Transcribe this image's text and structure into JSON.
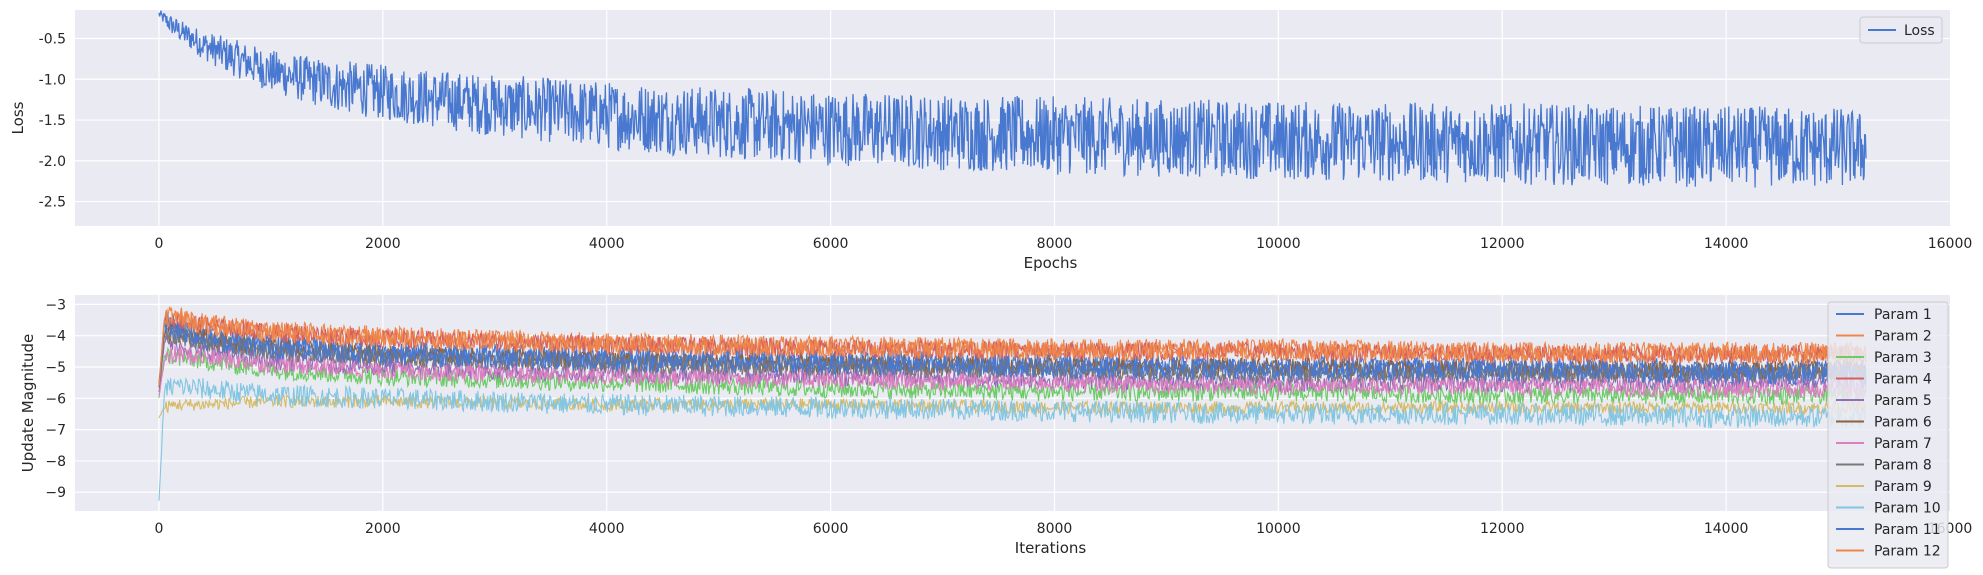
{
  "chart_data": [
    {
      "type": "line",
      "title": "",
      "xlabel": "Epochs",
      "ylabel": "Loss",
      "xlim": [
        -750,
        16000
      ],
      "ylim": [
        -2.8,
        -0.15
      ],
      "xticks": [
        0,
        2000,
        4000,
        6000,
        8000,
        10000,
        12000,
        14000,
        16000
      ],
      "yticks": [
        -0.5,
        -1.0,
        -1.5,
        -2.0,
        -2.5
      ],
      "xtick_labels": [
        "0",
        "2000",
        "4000",
        "6000",
        "8000",
        "10000",
        "12000",
        "14000",
        "16000"
      ],
      "ytick_labels": [
        "-0.5",
        "-1.0",
        "-1.5",
        "-2.0",
        "-2.5"
      ],
      "grid": true,
      "legend": "upper right",
      "series": [
        {
          "name": "Loss",
          "color": "#4878d0",
          "x": [
            0,
            100,
            200,
            300,
            400,
            500,
            600,
            800,
            1000,
            1200,
            1400,
            1600,
            1800,
            2000,
            2500,
            3000,
            3500,
            4000,
            4500,
            5000,
            5500,
            6000,
            6500,
            7000,
            7500,
            8000,
            8500,
            9000,
            9500,
            10000,
            10500,
            11000,
            11500,
            12000,
            12500,
            13000,
            13500,
            14000,
            14500,
            15000,
            15250
          ],
          "y": [
            -0.2,
            -0.32,
            -0.42,
            -0.5,
            -0.58,
            -0.64,
            -0.7,
            -0.8,
            -0.9,
            -0.97,
            -1.03,
            -1.08,
            -1.12,
            -1.16,
            -1.25,
            -1.32,
            -1.38,
            -1.44,
            -1.49,
            -1.53,
            -1.57,
            -1.6,
            -1.62,
            -1.65,
            -1.67,
            -1.69,
            -1.7,
            -1.72,
            -1.73,
            -1.75,
            -1.76,
            -1.77,
            -1.78,
            -1.79,
            -1.8,
            -1.81,
            -1.82,
            -1.83,
            -1.83,
            -1.84,
            -1.85
          ],
          "band_halfwidth": [
            0.05,
            0.12,
            0.14,
            0.16,
            0.18,
            0.2,
            0.22,
            0.24,
            0.26,
            0.28,
            0.3,
            0.32,
            0.33,
            0.34,
            0.36,
            0.38,
            0.4,
            0.42,
            0.43,
            0.44,
            0.45,
            0.46,
            0.46,
            0.47,
            0.47,
            0.48,
            0.48,
            0.48,
            0.48,
            0.49,
            0.49,
            0.49,
            0.49,
            0.5,
            0.5,
            0.5,
            0.5,
            0.5,
            0.5,
            0.5,
            0.45
          ]
        }
      ]
    },
    {
      "type": "line",
      "title": "",
      "xlabel": "Iterations",
      "ylabel": "Update Magnitude",
      "xlim": [
        -750,
        16000
      ],
      "ylim": [
        -9.6,
        -2.7
      ],
      "xticks": [
        0,
        2000,
        4000,
        6000,
        8000,
        10000,
        12000,
        14000,
        16000
      ],
      "yticks": [
        -3,
        -4,
        -5,
        -6,
        -7,
        -8,
        -9
      ],
      "xtick_labels": [
        "0",
        "2000",
        "4000",
        "6000",
        "8000",
        "10000",
        "12000",
        "14000",
        "16000"
      ],
      "ytick_labels": [
        "−3",
        "−4",
        "−5",
        "−6",
        "−7",
        "−8",
        "−9"
      ],
      "grid": true,
      "legend": "right",
      "x": [
        0,
        50,
        150,
        400,
        1000,
        2000,
        4000,
        6000,
        8000,
        10000,
        12000,
        14000,
        15250
      ],
      "series": [
        {
          "name": "Param 1",
          "color": "#4878d0",
          "y": [
            -5.6,
            -3.5,
            -3.7,
            -4.0,
            -4.3,
            -4.5,
            -4.7,
            -4.8,
            -4.9,
            -5.0,
            -5.0,
            -5.1,
            -5.1
          ],
          "band_halfwidth": 0.35
        },
        {
          "name": "Param 2",
          "color": "#ee854a",
          "y": [
            -5.5,
            -3.4,
            -3.3,
            -3.6,
            -3.8,
            -4.0,
            -4.2,
            -4.3,
            -4.4,
            -4.4,
            -4.5,
            -4.5,
            -4.5
          ],
          "band_halfwidth": 0.3
        },
        {
          "name": "Param 3",
          "color": "#6acc64",
          "y": [
            -6.0,
            -4.6,
            -4.7,
            -4.8,
            -5.1,
            -5.3,
            -5.5,
            -5.7,
            -5.8,
            -5.8,
            -5.9,
            -5.9,
            -5.9
          ],
          "band_halfwidth": 0.3
        },
        {
          "name": "Param 4",
          "color": "#d65f5f",
          "y": [
            -5.6,
            -3.6,
            -3.5,
            -3.7,
            -3.9,
            -4.1,
            -4.3,
            -4.4,
            -4.5,
            -4.5,
            -4.6,
            -4.6,
            -4.6
          ],
          "band_halfwidth": 0.3
        },
        {
          "name": "Param 5",
          "color": "#956cb4",
          "y": [
            -5.8,
            -4.2,
            -4.3,
            -4.5,
            -4.8,
            -5.0,
            -5.2,
            -5.3,
            -5.4,
            -5.5,
            -5.5,
            -5.5,
            -5.5
          ],
          "band_halfwidth": 0.3
        },
        {
          "name": "Param 6",
          "color": "#8c613c",
          "y": [
            -5.7,
            -3.9,
            -3.9,
            -4.1,
            -4.4,
            -4.6,
            -4.8,
            -4.9,
            -5.0,
            -5.0,
            -5.1,
            -5.1,
            -5.1
          ],
          "band_halfwidth": 0.3
        },
        {
          "name": "Param 7",
          "color": "#dc7ec0",
          "y": [
            -5.9,
            -4.8,
            -4.6,
            -4.7,
            -4.9,
            -5.1,
            -5.3,
            -5.4,
            -5.5,
            -5.6,
            -5.6,
            -5.7,
            -5.7
          ],
          "band_halfwidth": 0.3
        },
        {
          "name": "Param 8",
          "color": "#797979",
          "y": [
            -5.7,
            -4.0,
            -4.0,
            -4.2,
            -4.5,
            -4.7,
            -4.9,
            -5.0,
            -5.1,
            -5.2,
            -5.2,
            -5.2,
            -5.2
          ],
          "band_halfwidth": 0.3
        },
        {
          "name": "Param 9",
          "color": "#d5bb67",
          "y": [
            -6.6,
            -6.3,
            -6.2,
            -6.2,
            -6.1,
            -6.1,
            -6.2,
            -6.2,
            -6.3,
            -6.3,
            -6.3,
            -6.3,
            -6.3
          ],
          "band_halfwidth": 0.2
        },
        {
          "name": "Param 10",
          "color": "#82c6e2",
          "y": [
            -9.3,
            -5.7,
            -5.6,
            -5.7,
            -5.9,
            -6.0,
            -6.2,
            -6.3,
            -6.4,
            -6.5,
            -6.5,
            -6.6,
            -6.6
          ],
          "band_halfwidth": 0.35
        },
        {
          "name": "Param 11",
          "color": "#4878d0",
          "y": [
            -5.6,
            -3.6,
            -3.8,
            -4.1,
            -4.4,
            -4.6,
            -4.8,
            -4.9,
            -5.0,
            -5.1,
            -5.1,
            -5.2,
            -5.2
          ],
          "band_halfwidth": 0.35
        },
        {
          "name": "Param 12",
          "color": "#ee854a",
          "y": [
            -5.6,
            -3.5,
            -3.4,
            -3.7,
            -3.9,
            -4.1,
            -4.3,
            -4.4,
            -4.5,
            -4.5,
            -4.6,
            -4.6,
            -4.6
          ],
          "band_halfwidth": 0.3
        }
      ]
    }
  ],
  "colors": {
    "axes_background": "#eaeaf2",
    "grid": "#ffffff",
    "text": "#262626"
  }
}
